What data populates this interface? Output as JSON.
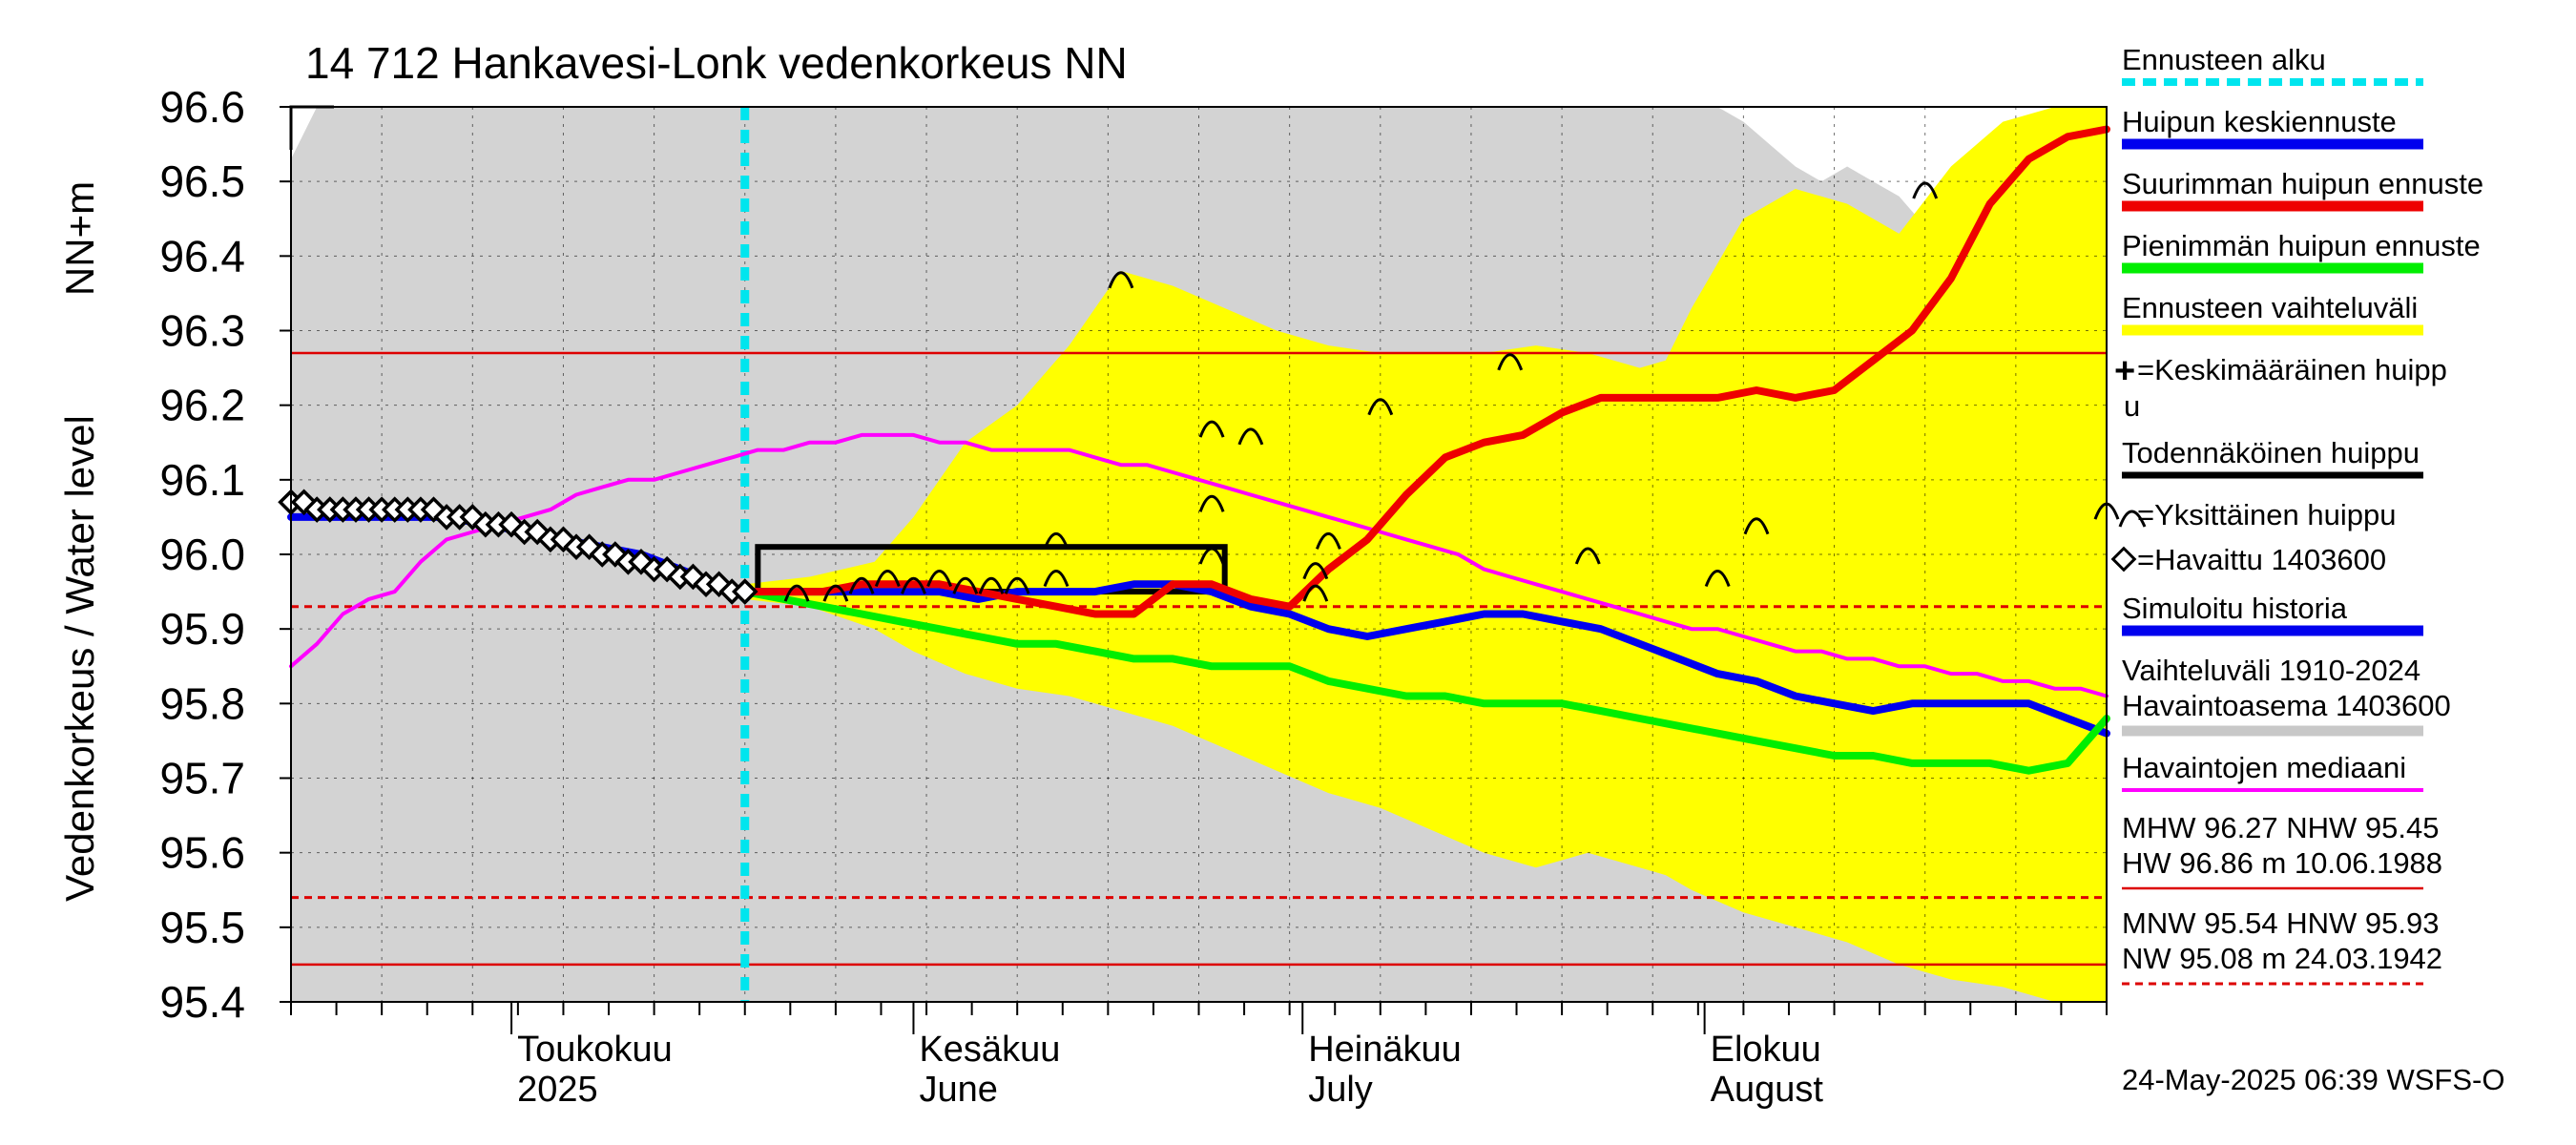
{
  "chart_data": {
    "type": "line",
    "title": "14 712 Hankavesi-Lonk vedenkorkeus NN",
    "ylabel_line1": "Vedenkorkeus / Water level",
    "ylabel_line2": "NN+m",
    "ylim": [
      95.4,
      96.6
    ],
    "yticks": [
      "95.4",
      "95.5",
      "95.6",
      "95.7",
      "95.8",
      "95.9",
      "96.0",
      "96.1",
      "96.2",
      "96.3",
      "96.4",
      "96.5",
      "96.6"
    ],
    "x_unit": "day index (0 = 14 April 2025)",
    "xlim": [
      0,
      140
    ],
    "forecast_start_day": 35,
    "months": [
      {
        "fi": "Toukokuu",
        "en": "2025",
        "day": 17
      },
      {
        "fi": "Kesäkuu",
        "en": "June",
        "day": 48
      },
      {
        "fi": "Heinäkuu",
        "en": "July",
        "day": 78
      },
      {
        "fi": "Elokuu",
        "en": "August",
        "day": 109
      }
    ],
    "hlines": [
      {
        "name": "MHW",
        "value": 96.27,
        "style": "solid",
        "color": "#dd0000"
      },
      {
        "name": "HNW",
        "value": 95.93,
        "style": "dashed",
        "color": "#dd0000"
      },
      {
        "name": "MNW",
        "value": 95.54,
        "style": "dashed",
        "color": "#dd0000"
      },
      {
        "name": "NHW",
        "value": 95.45,
        "style": "solid",
        "color": "#dd0000"
      }
    ],
    "history_band": {
      "name": "Vaihteluväli 1910-2024 Havaintoasema 1403600",
      "color": "#d3d3d3",
      "x": [
        0,
        2,
        4,
        6,
        8,
        10,
        12,
        14,
        16,
        18,
        20,
        22,
        24,
        26,
        28,
        30,
        32,
        34,
        36,
        38,
        40,
        42,
        44,
        46,
        48,
        50,
        52,
        54,
        56,
        58,
        60,
        62,
        64,
        66,
        68,
        70,
        72,
        74,
        76,
        78,
        80,
        82,
        84,
        86,
        88,
        90,
        92,
        94,
        96,
        98,
        100,
        102,
        104,
        106,
        108,
        110,
        112,
        114,
        116,
        118,
        120,
        122,
        124,
        126,
        128,
        130,
        132,
        134,
        136,
        138,
        140
      ],
      "upper": [
        96.53,
        96.6,
        96.6,
        96.6,
        96.6,
        96.6,
        96.6,
        96.6,
        96.6,
        96.6,
        96.6,
        96.6,
        96.6,
        96.6,
        96.6,
        96.6,
        96.6,
        96.6,
        96.6,
        96.6,
        96.6,
        96.6,
        96.6,
        96.6,
        96.6,
        96.6,
        96.6,
        96.6,
        96.6,
        96.6,
        96.6,
        96.6,
        96.6,
        96.6,
        96.6,
        96.6,
        96.6,
        96.6,
        96.6,
        96.6,
        96.6,
        96.6,
        96.6,
        96.6,
        96.6,
        96.6,
        96.6,
        96.6,
        96.6,
        96.6,
        96.6,
        96.6,
        96.6,
        96.6,
        96.6,
        96.6,
        96.58,
        96.55,
        96.52,
        96.5,
        96.52,
        96.5,
        96.48,
        96.44,
        96.42,
        96.4,
        96.42,
        96.4,
        96.58,
        96.6,
        96.6
      ],
      "lower": [
        95.4,
        95.4,
        95.4,
        95.4,
        95.4,
        95.4,
        95.4,
        95.4,
        95.4,
        95.4,
        95.4,
        95.4,
        95.4,
        95.4,
        95.4,
        95.4,
        95.4,
        95.4,
        95.4,
        95.4,
        95.4,
        95.4,
        95.4,
        95.4,
        95.4,
        95.4,
        95.4,
        95.4,
        95.4,
        95.4,
        95.4,
        95.4,
        95.4,
        95.4,
        95.4,
        95.4,
        95.4,
        95.4,
        95.4,
        95.4,
        95.4,
        95.4,
        95.4,
        95.4,
        95.4,
        95.4,
        95.4,
        95.4,
        95.4,
        95.4,
        95.4,
        95.4,
        95.4,
        95.4,
        95.4,
        95.4,
        95.4,
        95.4,
        95.4,
        95.4,
        95.4,
        95.4,
        95.4,
        95.4,
        95.4,
        95.4,
        95.4,
        95.4,
        95.4,
        95.4,
        95.4
      ]
    },
    "forecast_band": {
      "name": "Ennusteen vaihteluväli",
      "color": "#ffff00",
      "x": [
        35,
        40,
        45,
        48,
        52,
        56,
        60,
        64,
        68,
        72,
        76,
        80,
        84,
        88,
        92,
        96,
        100,
        104,
        106,
        108,
        112,
        116,
        120,
        124,
        128,
        132,
        136,
        140
      ],
      "upper": [
        95.96,
        95.97,
        95.99,
        96.05,
        96.15,
        96.2,
        96.28,
        96.38,
        96.36,
        96.33,
        96.3,
        96.28,
        96.27,
        96.27,
        96.27,
        96.28,
        96.27,
        96.25,
        96.26,
        96.33,
        96.45,
        96.49,
        96.47,
        96.43,
        96.52,
        96.58,
        96.6,
        96.6
      ],
      "lower": [
        95.94,
        95.93,
        95.9,
        95.87,
        95.84,
        95.82,
        95.81,
        95.79,
        95.77,
        95.74,
        95.71,
        95.68,
        95.66,
        95.63,
        95.6,
        95.58,
        95.6,
        95.58,
        95.57,
        95.55,
        95.52,
        95.5,
        95.48,
        95.45,
        95.43,
        95.42,
        95.4,
        95.4
      ]
    },
    "series": [
      {
        "name": "Havaintojen mediaani",
        "color": "#ff00ff",
        "width": 4,
        "x": [
          0,
          2,
          4,
          6,
          8,
          10,
          12,
          14,
          16,
          18,
          20,
          22,
          24,
          26,
          28,
          30,
          32,
          34,
          36,
          38,
          40,
          42,
          44,
          46,
          48,
          50,
          52,
          54,
          56,
          58,
          60,
          62,
          64,
          66,
          68,
          70,
          72,
          74,
          76,
          78,
          80,
          82,
          84,
          86,
          88,
          90,
          92,
          94,
          96,
          98,
          100,
          102,
          104,
          106,
          108,
          110,
          112,
          114,
          116,
          118,
          120,
          122,
          124,
          126,
          128,
          130,
          132,
          134,
          136,
          138,
          140
        ],
        "y": [
          95.85,
          95.88,
          95.92,
          95.94,
          95.95,
          95.99,
          96.02,
          96.03,
          96.04,
          96.05,
          96.06,
          96.08,
          96.09,
          96.1,
          96.1,
          96.11,
          96.12,
          96.13,
          96.14,
          96.14,
          96.15,
          96.15,
          96.16,
          96.16,
          96.16,
          96.15,
          96.15,
          96.14,
          96.14,
          96.14,
          96.14,
          96.13,
          96.12,
          96.12,
          96.11,
          96.1,
          96.09,
          96.08,
          96.07,
          96.06,
          96.05,
          96.04,
          96.03,
          96.02,
          96.01,
          96.0,
          95.98,
          95.97,
          95.96,
          95.95,
          95.94,
          95.93,
          95.92,
          95.91,
          95.9,
          95.9,
          95.89,
          95.88,
          95.87,
          95.87,
          95.86,
          95.86,
          95.85,
          95.85,
          95.84,
          95.84,
          95.83,
          95.83,
          95.82,
          95.82,
          95.81
        ]
      },
      {
        "name": "Simuloitu historia",
        "color": "#0000ee",
        "width": 8,
        "x": [
          0,
          3,
          6,
          9,
          12,
          15,
          18,
          21,
          24,
          27,
          30,
          33,
          35,
          38,
          41,
          44,
          47,
          50,
          53,
          56,
          59,
          62,
          65,
          68,
          71,
          74,
          77,
          80,
          83,
          86,
          89,
          92,
          95,
          98,
          101,
          104,
          107,
          110,
          113,
          116,
          119,
          122,
          125,
          128,
          131,
          134,
          137,
          140
        ],
        "y": [
          96.05,
          96.05,
          96.05,
          96.05,
          96.05,
          96.04,
          96.03,
          96.02,
          96.01,
          96.0,
          95.98,
          95.96,
          95.95,
          95.95,
          95.95,
          95.95,
          95.95,
          95.95,
          95.94,
          95.95,
          95.95,
          95.95,
          95.96,
          95.96,
          95.95,
          95.93,
          95.92,
          95.9,
          95.89,
          95.9,
          95.91,
          95.92,
          95.92,
          95.91,
          95.9,
          95.88,
          95.86,
          95.84,
          95.83,
          95.81,
          95.8,
          95.79,
          95.8,
          95.8,
          95.8,
          95.8,
          95.78,
          95.76
        ]
      },
      {
        "name": "Pienimmän huipun ennuste",
        "color": "#00ee00",
        "width": 8,
        "x": [
          35,
          38,
          41,
          44,
          47,
          50,
          53,
          56,
          59,
          62,
          65,
          68,
          71,
          74,
          77,
          80,
          83,
          86,
          89,
          92,
          95,
          98,
          101,
          104,
          107,
          110,
          113,
          116,
          119,
          122,
          125,
          128,
          131,
          134,
          137,
          140
        ],
        "y": [
          95.95,
          95.94,
          95.93,
          95.92,
          95.91,
          95.9,
          95.89,
          95.88,
          95.88,
          95.87,
          95.86,
          95.86,
          95.85,
          95.85,
          95.85,
          95.83,
          95.82,
          95.81,
          95.81,
          95.8,
          95.8,
          95.8,
          95.79,
          95.78,
          95.77,
          95.76,
          95.75,
          95.74,
          95.73,
          95.73,
          95.72,
          95.72,
          95.72,
          95.71,
          95.72,
          95.78
        ]
      },
      {
        "name": "Suurimman huipun ennuste",
        "color": "#ee0000",
        "width": 8,
        "x": [
          35,
          38,
          41,
          44,
          47,
          50,
          53,
          56,
          59,
          62,
          65,
          68,
          71,
          74,
          77,
          80,
          83,
          86,
          89,
          92,
          95,
          98,
          101,
          104,
          107,
          110,
          113,
          116,
          119,
          122,
          125,
          128,
          131,
          134,
          137,
          140
        ],
        "y": [
          95.95,
          95.95,
          95.95,
          95.96,
          95.96,
          95.96,
          95.95,
          95.94,
          95.93,
          95.92,
          95.92,
          95.96,
          95.96,
          95.94,
          95.93,
          95.98,
          96.02,
          96.08,
          96.13,
          96.15,
          96.16,
          96.19,
          96.21,
          96.21,
          96.21,
          96.21,
          96.22,
          96.21,
          96.22,
          96.26,
          96.3,
          96.37,
          96.47,
          96.53,
          96.56,
          96.57
        ]
      }
    ],
    "observations": {
      "name": "Havaittu 1403600",
      "x": [
        0,
        1,
        2,
        3,
        4,
        5,
        6,
        7,
        8,
        9,
        10,
        11,
        12,
        13,
        14,
        15,
        16,
        17,
        18,
        19,
        20,
        21,
        22,
        23,
        24,
        25,
        26,
        27,
        28,
        29,
        30,
        31,
        32,
        33,
        34,
        35
      ],
      "y": [
        96.07,
        96.07,
        96.06,
        96.06,
        96.06,
        96.06,
        96.06,
        96.06,
        96.06,
        96.06,
        96.06,
        96.06,
        96.05,
        96.05,
        96.05,
        96.04,
        96.04,
        96.04,
        96.03,
        96.03,
        96.02,
        96.02,
        96.01,
        96.01,
        96.0,
        96.0,
        95.99,
        95.99,
        95.98,
        95.98,
        95.97,
        95.97,
        95.96,
        95.96,
        95.95,
        95.95
      ]
    },
    "likely_peak_box": {
      "name": "Todennäköinen huippu",
      "x0": 36,
      "x1": 72,
      "y_low": 95.95,
      "y_high": 96.01
    },
    "single_peaks": {
      "name": "Yksittäinen huippu",
      "x": [
        39,
        42,
        44,
        46,
        48,
        50,
        52,
        54,
        56,
        59,
        59,
        64,
        71,
        71,
        71,
        74,
        79,
        79,
        80,
        84,
        94,
        100,
        110,
        113,
        126,
        140
      ],
      "y": [
        95.95,
        95.95,
        95.96,
        95.97,
        95.96,
        95.97,
        95.96,
        95.96,
        95.96,
        95.97,
        96.02,
        96.37,
        96.17,
        96.07,
        96.0,
        96.16,
        95.98,
        95.95,
        96.02,
        96.2,
        96.26,
        96.0,
        95.97,
        96.04,
        96.49,
        96.06
      ]
    }
  },
  "legend": {
    "forecast_start": "Ennusteen alku",
    "mean_peak": "Huipun keskiennuste",
    "max_peak": "Suurimman huipun ennuste",
    "min_peak": "Pienimmän huipun ennuste",
    "forecast_range": "Ennusteen vaihteluväli",
    "avg_peak_line1": "=Keskimääräinen huipp",
    "avg_peak_line2": "u",
    "likely_peak": "Todennäköinen huippu",
    "single_peak": "=Yksittäinen huippu",
    "observed": "=Havaittu 1403600",
    "simulated": "Simuloitu historia",
    "range_line1": "Vaihteluväli 1910-2024",
    "range_line2": " Havaintoasema 1403600",
    "median": "Havaintojen mediaani",
    "stats_line1": "MHW  96.27 NHW  95.45",
    "stats_line2": "HW  96.86 m 10.06.1988",
    "stats_line3": "MNW  95.54 HNW  95.93",
    "stats_line4": "NW  95.08 m 24.03.1942",
    "footer": "24-May-2025 06:39 WSFS-O"
  },
  "colors": {
    "forecast_start": "#00e5ee",
    "mean_peak": "#0000ee",
    "max_peak": "#ee0000",
    "min_peak": "#00ee00",
    "forecast_range": "#ffff00",
    "likely_peak": "#000000",
    "simulated": "#0000ee",
    "range": "#c8c8c8",
    "median": "#ff00ff",
    "reference": "#dd0000"
  }
}
